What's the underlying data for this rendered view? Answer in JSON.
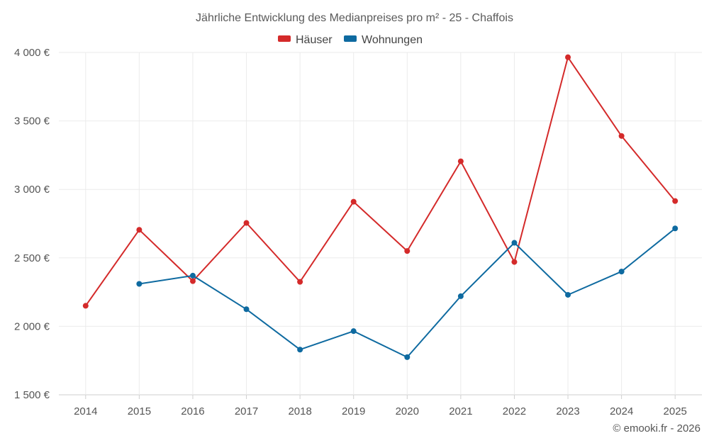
{
  "chart_data": {
    "type": "line",
    "title": "Jährliche Entwicklung des Medianpreises pro m² - 25 - Chaffois",
    "x": [
      "2014",
      "2015",
      "2016",
      "2017",
      "2018",
      "2019",
      "2020",
      "2021",
      "2022",
      "2023",
      "2024",
      "2025"
    ],
    "ylim": [
      1500,
      4000
    ],
    "y_ticks": [
      1500,
      2000,
      2500,
      3000,
      3500,
      4000
    ],
    "y_tick_labels": [
      "1 500 €",
      "2 000 €",
      "2 500 €",
      "3 000 €",
      "3 500 €",
      "4 000 €"
    ],
    "grid": true,
    "legend_position": "top-center",
    "series": [
      {
        "name": "Häuser",
        "color": "#d42a2a",
        "values": [
          2150,
          2705,
          2330,
          2755,
          2325,
          2910,
          2550,
          3205,
          2470,
          3965,
          3390,
          2915
        ]
      },
      {
        "name": "Wohnungen",
        "color": "#0e6aa0",
        "values": [
          null,
          2310,
          2370,
          2125,
          1830,
          1965,
          1775,
          2220,
          2610,
          2230,
          2400,
          2715
        ]
      }
    ]
  },
  "footer": {
    "credit": "© emooki.fr - 2026"
  }
}
